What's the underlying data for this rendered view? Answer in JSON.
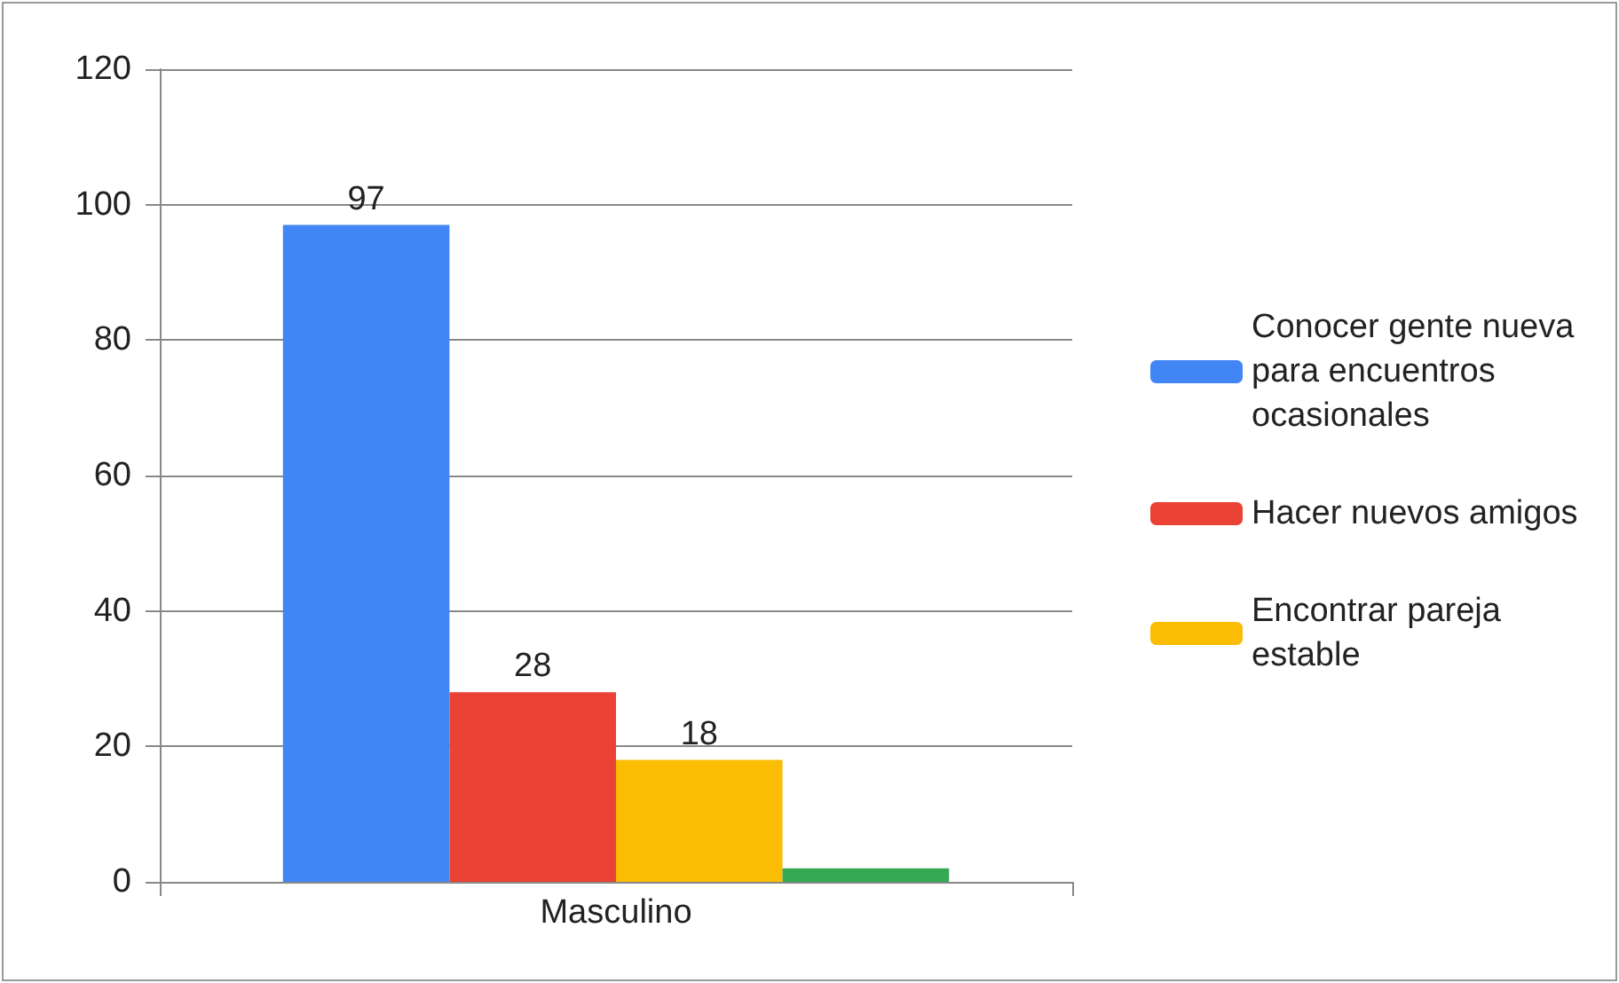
{
  "chart_data": {
    "type": "bar",
    "categories": [
      "Masculino"
    ],
    "series": [
      {
        "name": "Conocer gente nueva para encuentros ocasionales",
        "color": "#4285f4",
        "values": [
          97
        ],
        "value_labels": [
          "97"
        ]
      },
      {
        "name": "Hacer nuevos amigos",
        "color": "#ea4335",
        "values": [
          28
        ],
        "value_labels": [
          "28"
        ]
      },
      {
        "name": "Encontrar pareja estable",
        "color": "#fbbc04",
        "values": [
          18
        ],
        "value_labels": [
          "18"
        ]
      },
      {
        "color": "#34a853",
        "values": [
          2
        ],
        "value_labels": [
          null
        ]
      }
    ],
    "ylim": [
      0,
      120
    ],
    "yticks": [
      0,
      20,
      40,
      60,
      80,
      100,
      120
    ],
    "grid": "y",
    "legend": "right"
  }
}
